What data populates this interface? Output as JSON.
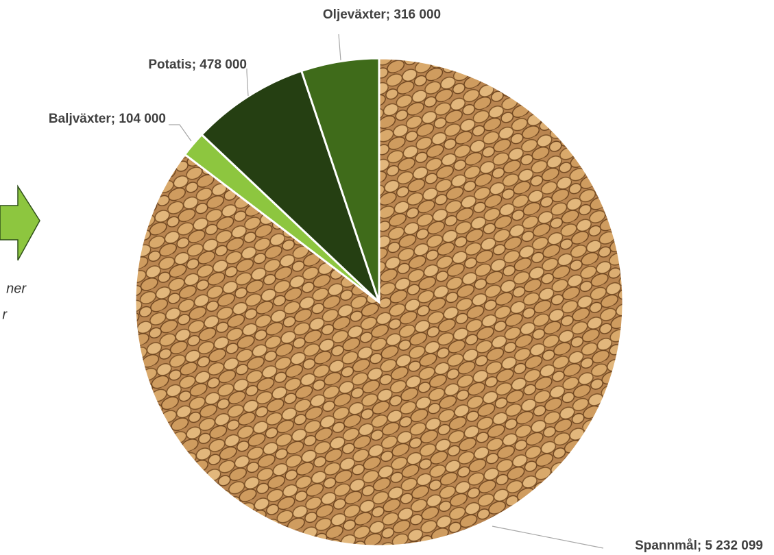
{
  "chart_data": {
    "type": "pie",
    "categories": [
      "Spannmål",
      "Baljväxter",
      "Potatis",
      "Oljeväxter"
    ],
    "values": [
      5232099,
      104000,
      478000,
      316000
    ],
    "value_labels": [
      "Spannmål; 5 232 099",
      "Baljväxter; 104 000",
      "Potatis; 478 000",
      "Oljeväxter; 316 000"
    ],
    "colors": [
      "#c8955a",
      "#8dc63f",
      "#253f12",
      "#3f6b1a"
    ],
    "annotations": [
      "ner",
      "r"
    ]
  }
}
